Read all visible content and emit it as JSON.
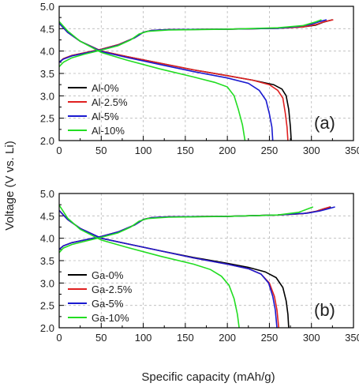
{
  "figure": {
    "ylabel": "Voltage (V vs. Li)",
    "xlabel": "Specific capacity (mAh/g)"
  },
  "chart_data": [
    {
      "type": "line",
      "panel_label": "(a)",
      "xlim": [
        0,
        350
      ],
      "ylim": [
        2.0,
        5.0
      ],
      "xticks": [
        "0",
        "50",
        "100",
        "150",
        "200",
        "250",
        "300",
        "350"
      ],
      "yticks": [
        "2.0",
        "2.5",
        "3.0",
        "3.5",
        "4.0",
        "4.5",
        "5.0"
      ],
      "grid": true,
      "legend_position": "middle-left",
      "series": [
        {
          "name": "Al-0%",
          "color": "#000000",
          "charge": [
            [
              0,
              3.75
            ],
            [
              5,
              3.83
            ],
            [
              15,
              3.9
            ],
            [
              30,
              3.96
            ],
            [
              50,
              4.04
            ],
            [
              70,
              4.14
            ],
            [
              90,
              4.3
            ],
            [
              100,
              4.42
            ],
            [
              110,
              4.46
            ],
            [
              130,
              4.48
            ],
            [
              200,
              4.49
            ],
            [
              260,
              4.51
            ],
            [
              290,
              4.54
            ],
            [
              305,
              4.58
            ],
            [
              315,
              4.65
            ],
            [
              325,
              4.7
            ]
          ],
          "discharge": [
            [
              0,
              4.62
            ],
            [
              10,
              4.42
            ],
            [
              25,
              4.22
            ],
            [
              50,
              4.0
            ],
            [
              80,
              3.88
            ],
            [
              120,
              3.73
            ],
            [
              160,
              3.58
            ],
            [
              200,
              3.45
            ],
            [
              230,
              3.35
            ],
            [
              255,
              3.25
            ],
            [
              265,
              3.15
            ],
            [
              270,
              3.0
            ],
            [
              273,
              2.7
            ],
            [
              275,
              2.3
            ],
            [
              276,
              2.0
            ]
          ]
        },
        {
          "name": "Al-2.5%",
          "color": "#e02020",
          "charge": [
            [
              0,
              3.75
            ],
            [
              5,
              3.83
            ],
            [
              15,
              3.9
            ],
            [
              30,
              3.96
            ],
            [
              50,
              4.04
            ],
            [
              70,
              4.14
            ],
            [
              90,
              4.3
            ],
            [
              100,
              4.42
            ],
            [
              110,
              4.46
            ],
            [
              130,
              4.48
            ],
            [
              200,
              4.49
            ],
            [
              260,
              4.51
            ],
            [
              290,
              4.54
            ],
            [
              305,
              4.59
            ],
            [
              316,
              4.66
            ],
            [
              326,
              4.7
            ]
          ],
          "discharge": [
            [
              0,
              4.62
            ],
            [
              10,
              4.42
            ],
            [
              25,
              4.22
            ],
            [
              50,
              4.0
            ],
            [
              80,
              3.88
            ],
            [
              120,
              3.73
            ],
            [
              160,
              3.58
            ],
            [
              200,
              3.45
            ],
            [
              230,
              3.35
            ],
            [
              250,
              3.25
            ],
            [
              260,
              3.12
            ],
            [
              266,
              2.95
            ],
            [
              269,
              2.6
            ],
            [
              271,
              2.3
            ],
            [
              272,
              2.0
            ]
          ]
        },
        {
          "name": "Al-5%",
          "color": "#1a1ad0",
          "charge": [
            [
              0,
              3.75
            ],
            [
              5,
              3.82
            ],
            [
              15,
              3.89
            ],
            [
              30,
              3.95
            ],
            [
              50,
              4.03
            ],
            [
              70,
              4.13
            ],
            [
              90,
              4.3
            ],
            [
              100,
              4.42
            ],
            [
              110,
              4.46
            ],
            [
              130,
              4.48
            ],
            [
              200,
              4.49
            ],
            [
              260,
              4.51
            ],
            [
              285,
              4.55
            ],
            [
              300,
              4.6
            ],
            [
              310,
              4.66
            ],
            [
              318,
              4.7
            ]
          ],
          "discharge": [
            [
              0,
              4.62
            ],
            [
              10,
              4.42
            ],
            [
              25,
              4.22
            ],
            [
              50,
              3.99
            ],
            [
              80,
              3.86
            ],
            [
              120,
              3.7
            ],
            [
              160,
              3.54
            ],
            [
              200,
              3.4
            ],
            [
              225,
              3.28
            ],
            [
              238,
              3.12
            ],
            [
              246,
              2.9
            ],
            [
              250,
              2.6
            ],
            [
              253,
              2.3
            ],
            [
              254,
              2.0
            ]
          ]
        },
        {
          "name": "Al-10%",
          "color": "#22dd22",
          "charge": [
            [
              0,
              3.65
            ],
            [
              5,
              3.75
            ],
            [
              15,
              3.85
            ],
            [
              30,
              3.93
            ],
            [
              50,
              4.02
            ],
            [
              70,
              4.12
            ],
            [
              85,
              4.25
            ],
            [
              95,
              4.38
            ],
            [
              105,
              4.44
            ],
            [
              130,
              4.47
            ],
            [
              200,
              4.49
            ],
            [
              260,
              4.52
            ],
            [
              290,
              4.57
            ],
            [
              305,
              4.65
            ],
            [
              312,
              4.7
            ]
          ],
          "discharge": [
            [
              0,
              4.66
            ],
            [
              10,
              4.45
            ],
            [
              25,
              4.22
            ],
            [
              50,
              3.97
            ],
            [
              80,
              3.8
            ],
            [
              120,
              3.6
            ],
            [
              160,
              3.42
            ],
            [
              185,
              3.3
            ],
            [
              200,
              3.2
            ],
            [
              208,
              3.0
            ],
            [
              213,
              2.7
            ],
            [
              218,
              2.35
            ],
            [
              221,
              2.0
            ]
          ]
        }
      ]
    },
    {
      "type": "line",
      "panel_label": "(b)",
      "xlim": [
        0,
        350
      ],
      "ylim": [
        2.0,
        5.0
      ],
      "xticks": [
        "0",
        "50",
        "100",
        "150",
        "200",
        "250",
        "300",
        "350"
      ],
      "yticks": [
        "2.0",
        "2.5",
        "3.0",
        "3.5",
        "4.0",
        "4.5",
        "5.0"
      ],
      "grid": true,
      "legend_position": "middle-left",
      "series": [
        {
          "name": "Ga-0%",
          "color": "#000000",
          "charge": [
            [
              0,
              3.75
            ],
            [
              5,
              3.83
            ],
            [
              15,
              3.9
            ],
            [
              30,
              3.96
            ],
            [
              50,
              4.04
            ],
            [
              70,
              4.14
            ],
            [
              90,
              4.3
            ],
            [
              100,
              4.42
            ],
            [
              110,
              4.46
            ],
            [
              130,
              4.48
            ],
            [
              200,
              4.49
            ],
            [
              260,
              4.52
            ],
            [
              290,
              4.55
            ],
            [
              305,
              4.6
            ],
            [
              315,
              4.66
            ],
            [
              323,
              4.7
            ]
          ],
          "discharge": [
            [
              0,
              4.62
            ],
            [
              10,
              4.42
            ],
            [
              25,
              4.22
            ],
            [
              50,
              4.0
            ],
            [
              80,
              3.88
            ],
            [
              120,
              3.72
            ],
            [
              160,
              3.57
            ],
            [
              200,
              3.44
            ],
            [
              225,
              3.35
            ],
            [
              245,
              3.25
            ],
            [
              258,
              3.12
            ],
            [
              266,
              2.9
            ],
            [
              270,
              2.6
            ],
            [
              272,
              2.3
            ],
            [
              273,
              2.0
            ]
          ]
        },
        {
          "name": "Ga-2.5%",
          "color": "#e02020",
          "charge": [
            [
              0,
              3.75
            ],
            [
              5,
              3.83
            ],
            [
              15,
              3.9
            ],
            [
              30,
              3.96
            ],
            [
              50,
              4.04
            ],
            [
              70,
              4.14
            ],
            [
              90,
              4.3
            ],
            [
              100,
              4.42
            ],
            [
              110,
              4.46
            ],
            [
              130,
              4.48
            ],
            [
              200,
              4.49
            ],
            [
              260,
              4.52
            ],
            [
              290,
              4.55
            ],
            [
              305,
              4.6
            ],
            [
              315,
              4.66
            ],
            [
              322,
              4.7
            ]
          ],
          "discharge": [
            [
              0,
              4.62
            ],
            [
              10,
              4.42
            ],
            [
              25,
              4.22
            ],
            [
              50,
              4.0
            ],
            [
              80,
              3.88
            ],
            [
              120,
              3.72
            ],
            [
              160,
              3.56
            ],
            [
              200,
              3.42
            ],
            [
              225,
              3.32
            ],
            [
              240,
              3.2
            ],
            [
              250,
              3.0
            ],
            [
              256,
              2.7
            ],
            [
              259,
              2.4
            ],
            [
              261,
              2.0
            ]
          ]
        },
        {
          "name": "Ga-5%",
          "color": "#1a1ad0",
          "charge": [
            [
              0,
              3.75
            ],
            [
              5,
              3.83
            ],
            [
              15,
              3.9
            ],
            [
              30,
              3.96
            ],
            [
              50,
              4.04
            ],
            [
              70,
              4.14
            ],
            [
              90,
              4.3
            ],
            [
              100,
              4.42
            ],
            [
              110,
              4.46
            ],
            [
              130,
              4.48
            ],
            [
              200,
              4.49
            ],
            [
              260,
              4.52
            ],
            [
              295,
              4.56
            ],
            [
              310,
              4.61
            ],
            [
              320,
              4.66
            ],
            [
              328,
              4.7
            ]
          ],
          "discharge": [
            [
              0,
              4.62
            ],
            [
              10,
              4.42
            ],
            [
              25,
              4.22
            ],
            [
              50,
              4.0
            ],
            [
              80,
              3.88
            ],
            [
              120,
              3.72
            ],
            [
              160,
              3.56
            ],
            [
              200,
              3.42
            ],
            [
              225,
              3.32
            ],
            [
              240,
              3.2
            ],
            [
              249,
              3.0
            ],
            [
              254,
              2.7
            ],
            [
              257,
              2.4
            ],
            [
              259,
              2.0
            ]
          ]
        },
        {
          "name": "Ga-10%",
          "color": "#22dd22",
          "charge": [
            [
              0,
              3.68
            ],
            [
              5,
              3.78
            ],
            [
              15,
              3.86
            ],
            [
              30,
              3.93
            ],
            [
              50,
              4.02
            ],
            [
              70,
              4.12
            ],
            [
              85,
              4.25
            ],
            [
              95,
              4.38
            ],
            [
              105,
              4.44
            ],
            [
              130,
              4.47
            ],
            [
              200,
              4.49
            ],
            [
              260,
              4.52
            ],
            [
              285,
              4.58
            ],
            [
              295,
              4.65
            ],
            [
              302,
              4.7
            ]
          ],
          "discharge": [
            [
              0,
              4.74
            ],
            [
              10,
              4.45
            ],
            [
              25,
              4.2
            ],
            [
              50,
              3.96
            ],
            [
              80,
              3.8
            ],
            [
              120,
              3.6
            ],
            [
              160,
              3.42
            ],
            [
              180,
              3.3
            ],
            [
              193,
              3.15
            ],
            [
              202,
              2.95
            ],
            [
              208,
              2.65
            ],
            [
              212,
              2.3
            ],
            [
              214,
              2.0
            ]
          ]
        }
      ]
    }
  ]
}
